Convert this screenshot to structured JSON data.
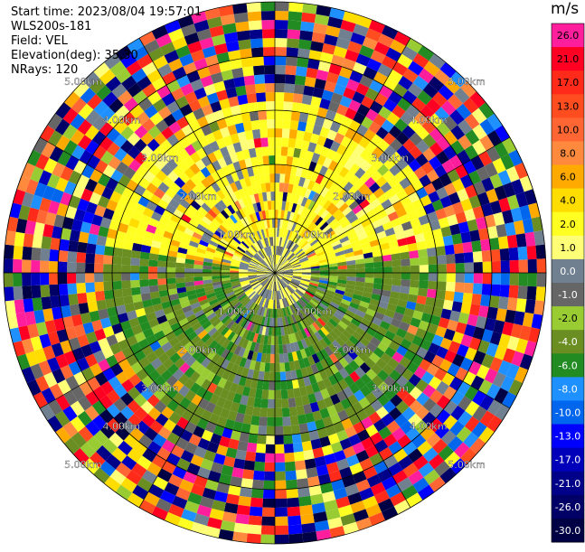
{
  "header": {
    "start_time": "Start time: 2023/08/04 19:57:01",
    "instrument": "WLS200s-181",
    "field": "Field: VEL",
    "elevation": "Elevation(deg): 35.30",
    "nrays": "NRays: 120"
  },
  "colorbar": {
    "unit": "m/s",
    "levels": [
      {
        "label": "26.0",
        "color": "#ff1f9c"
      },
      {
        "label": "21.0",
        "color": "#ff0022"
      },
      {
        "label": "17.0",
        "color": "#ff2a1a"
      },
      {
        "label": "13.0",
        "color": "#ff4d1f"
      },
      {
        "label": "10.0",
        "color": "#ff6633"
      },
      {
        "label": "8.0",
        "color": "#ff8a3d"
      },
      {
        "label": "6.0",
        "color": "#ffaa00"
      },
      {
        "label": "4.0",
        "color": "#ffdd00"
      },
      {
        "label": "2.0",
        "color": "#ffff22"
      },
      {
        "label": "1.0",
        "color": "#ffff77"
      },
      {
        "label": "0.0",
        "color": "#708090"
      },
      {
        "label": "-1.0",
        "color": "#666666"
      },
      {
        "label": "-2.0",
        "color": "#99cc33"
      },
      {
        "label": "-4.0",
        "color": "#6b8e23"
      },
      {
        "label": "-6.0",
        "color": "#228b22"
      },
      {
        "label": "-8.0",
        "color": "#1e90ff"
      },
      {
        "label": "-10.0",
        "color": "#0066ee"
      },
      {
        "label": "-13.0",
        "color": "#0000ff"
      },
      {
        "label": "-17.0",
        "color": "#0000bb"
      },
      {
        "label": "-21.0",
        "color": "#000088"
      },
      {
        "label": "-26.0",
        "color": "#000066"
      },
      {
        "label": "-30.0",
        "color": "#000044"
      }
    ]
  },
  "chart_data": {
    "type": "heatmap",
    "projection": "polar PPI",
    "field": "VEL",
    "nrays": 120,
    "range_ring_labels": [
      "1.00km",
      "2.00km",
      "3.00km",
      "4.00km",
      "5.00km"
    ],
    "grid": true,
    "legend_placement": "right",
    "velocity_regions_mps": [
      {
        "sector": "north",
        "range_km": [
          0.0,
          2.0
        ],
        "typical_value": 2.0
      },
      {
        "sector": "south",
        "range_km": [
          0.0,
          2.0
        ],
        "typical_value": -4.0
      },
      {
        "sector": "all",
        "range_km": [
          2.0,
          5.0
        ],
        "typical_value": null
      }
    ]
  }
}
